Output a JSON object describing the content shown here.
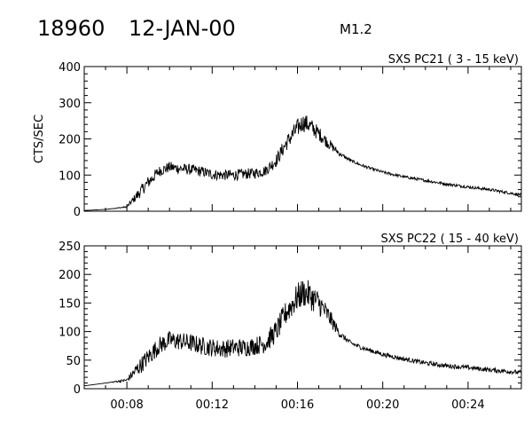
{
  "header": {
    "event_id": "18960",
    "date": "12-JAN-00",
    "flare_class": "M1.2"
  },
  "chart_data": [
    {
      "type": "line",
      "title": "SXS PC21  (  3 - 15 keV)",
      "ylabel": "CTS/SEC",
      "xlabel": "",
      "x_unit": "minutes after 00:00 UT",
      "xlim": [
        6,
        26.5
      ],
      "ylim": [
        0,
        400
      ],
      "yticks": [
        0,
        100,
        200,
        300,
        400
      ],
      "xtick_labels": [],
      "x": [
        6,
        7,
        8,
        8.5,
        9,
        9.5,
        10,
        10.5,
        11,
        11.5,
        12,
        12.5,
        13,
        13.5,
        14,
        14.5,
        15,
        15.5,
        16,
        16.25,
        16.5,
        17,
        17.5,
        18,
        18.5,
        19,
        19.5,
        20,
        21,
        22,
        23,
        24,
        25,
        26,
        26.5
      ],
      "y": [
        2,
        5,
        12,
        45,
        80,
        110,
        122,
        118,
        115,
        110,
        102,
        100,
        100,
        103,
        105,
        112,
        140,
        190,
        230,
        245,
        240,
        215,
        185,
        158,
        140,
        127,
        117,
        108,
        95,
        85,
        75,
        67,
        60,
        50,
        45
      ],
      "noise": [
        0,
        0,
        2,
        15,
        18,
        15,
        15,
        15,
        15,
        15,
        15,
        15,
        15,
        15,
        15,
        15,
        18,
        22,
        25,
        25,
        25,
        20,
        15,
        6,
        4,
        4,
        4,
        4,
        4,
        4,
        4,
        4,
        4,
        4,
        4
      ]
    },
    {
      "type": "line",
      "title": "SXS PC22  ( 15 - 40 keV)",
      "ylabel": "",
      "xlabel": "",
      "x_unit": "minutes after 00:00 UT",
      "xlim": [
        6,
        26.5
      ],
      "ylim": [
        0,
        250
      ],
      "yticks": [
        0,
        50,
        100,
        150,
        200,
        250
      ],
      "xticks": [
        8,
        12,
        16,
        20,
        24
      ],
      "xtick_labels": [
        "00:08",
        "00:12",
        "00:16",
        "00:20",
        "00:24"
      ],
      "x": [
        6,
        7,
        8,
        8.5,
        9,
        9.5,
        10,
        10.5,
        11,
        11.5,
        12,
        12.5,
        13,
        13.5,
        14,
        14.5,
        15,
        15.5,
        16,
        16.25,
        16.5,
        17,
        17.5,
        18,
        18.5,
        19,
        19.5,
        20,
        21,
        22,
        23,
        24,
        25,
        26,
        26.5
      ],
      "y": [
        5,
        10,
        15,
        35,
        55,
        75,
        85,
        83,
        80,
        75,
        72,
        70,
        72,
        72,
        75,
        80,
        100,
        135,
        160,
        168,
        165,
        150,
        125,
        95,
        80,
        72,
        66,
        60,
        52,
        45,
        40,
        37,
        33,
        30,
        28
      ],
      "noise": [
        0,
        0,
        3,
        14,
        16,
        16,
        16,
        16,
        16,
        16,
        16,
        16,
        16,
        16,
        16,
        18,
        20,
        22,
        25,
        25,
        25,
        22,
        16,
        6,
        4,
        4,
        4,
        4,
        4,
        4,
        4,
        4,
        4,
        4,
        4
      ]
    }
  ]
}
